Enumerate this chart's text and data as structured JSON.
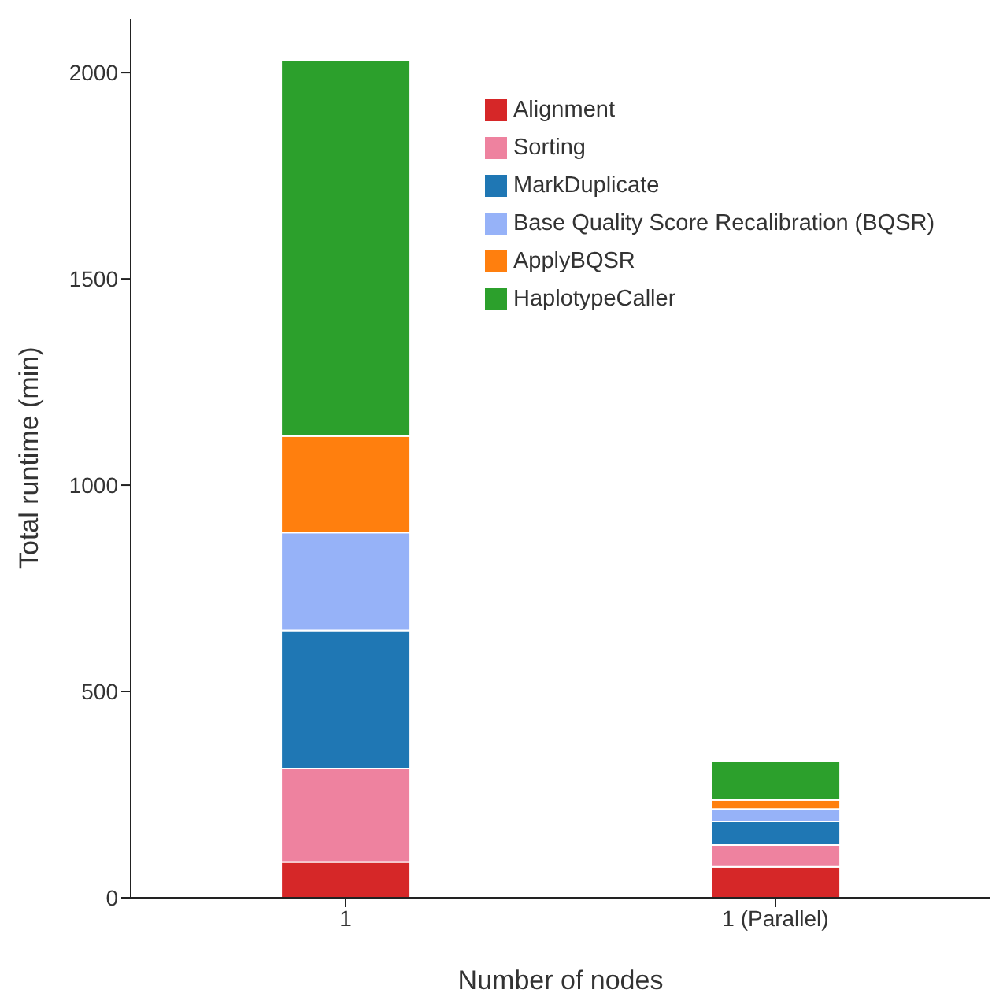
{
  "chart_data": {
    "type": "bar",
    "stacked": true,
    "categories": [
      "1",
      "1 (Parallel)"
    ],
    "xlabel": "Number of nodes",
    "ylabel": "Total runtime (min)",
    "ylim": [
      0,
      2130
    ],
    "yticks": [
      0,
      500,
      1000,
      1500,
      2000
    ],
    "grid": false,
    "legend": "top right",
    "series": [
      {
        "name": "Alignment",
        "color": "#d62728",
        "values": [
          87,
          75
        ]
      },
      {
        "name": "Sorting",
        "color": "#ee829f",
        "values": [
          226,
          53
        ]
      },
      {
        "name": "MarkDuplicate",
        "color": "#1f77b4",
        "values": [
          335,
          57
        ]
      },
      {
        "name": "Base Quality Score Recalibration (BQSR)",
        "color": "#96b2f8",
        "values": [
          237,
          30
        ]
      },
      {
        "name": "ApplyBQSR",
        "color": "#ff7f0e",
        "values": [
          234,
          22
        ]
      },
      {
        "name": "HaplotypeCaller",
        "color": "#2ca02c",
        "values": [
          911,
          94
        ]
      }
    ]
  }
}
